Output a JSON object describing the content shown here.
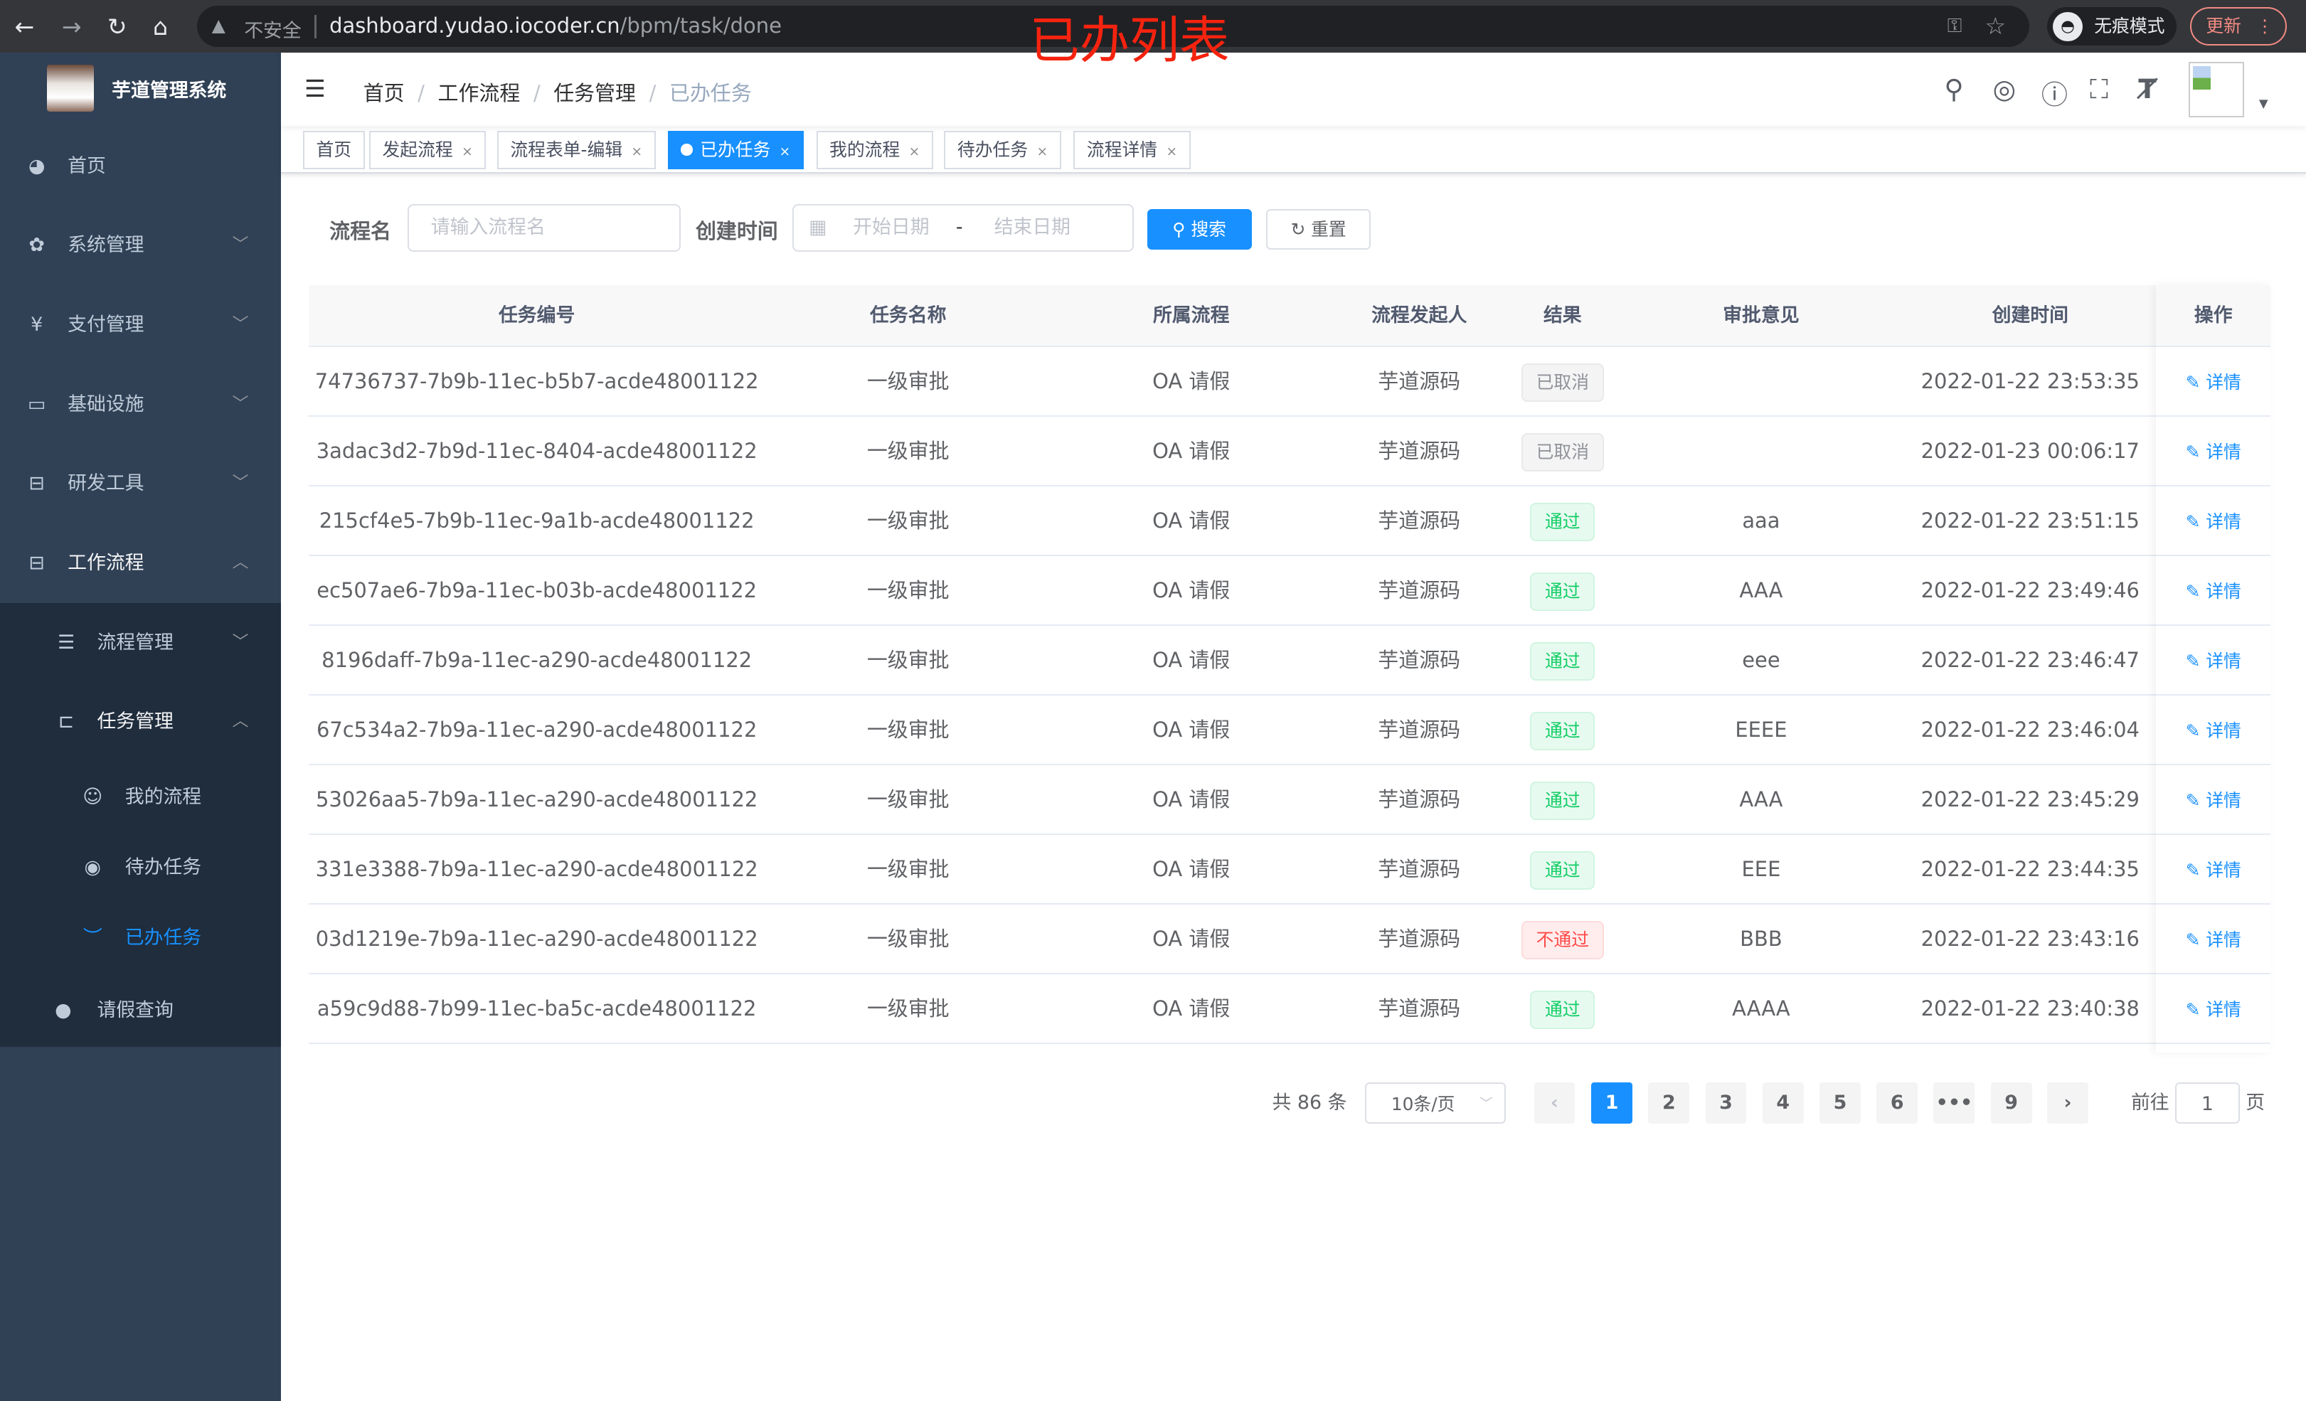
{
  "browser": {
    "url_host": "dashboard.yudao.iocoder.cn",
    "url_path": "/bpm/task/done",
    "security": "不安全",
    "incognito": "无痕模式",
    "update": "更新"
  },
  "annotation": "已办列表",
  "sidebar": {
    "title": "芋道管理系统",
    "items": [
      {
        "label": "首页",
        "icon": "dashboard-icon"
      },
      {
        "label": "系统管理",
        "icon": "gear-icon"
      },
      {
        "label": "支付管理",
        "icon": "yen-icon"
      },
      {
        "label": "基础设施",
        "icon": "monitor-icon"
      },
      {
        "label": "研发工具",
        "icon": "toolbox-icon"
      },
      {
        "label": "工作流程",
        "icon": "toolbox-icon"
      }
    ],
    "sub": [
      {
        "label": "流程管理"
      },
      {
        "label": "任务管理"
      },
      {
        "label": "我的流程"
      },
      {
        "label": "待办任务"
      },
      {
        "label": "已办任务"
      },
      {
        "label": "请假查询"
      }
    ],
    "active_color": "#1890ff"
  },
  "breadcrumb": [
    "首页",
    "工作流程",
    "任务管理",
    "已办任务"
  ],
  "tags": [
    "首页",
    "发起流程",
    "流程表单-编辑",
    "已办任务",
    "我的流程",
    "待办任务",
    "流程详情"
  ],
  "filter": {
    "name_label": "流程名",
    "name_placeholder": "请输入流程名",
    "time_label": "创建时间",
    "start_placeholder": "开始日期",
    "range_sep": "-",
    "end_placeholder": "结束日期",
    "search": "搜索",
    "reset": "重置"
  },
  "table": {
    "headers": [
      "任务编号",
      "任务名称",
      "所属流程",
      "流程发起人",
      "结果",
      "审批意见",
      "创建时间",
      "操作"
    ],
    "action": "详情",
    "rows": [
      {
        "id": "74736737-7b9b-11ec-b5b7-acde48001122",
        "name": "一级审批",
        "process": "OA 请假",
        "starter": "芋道源码",
        "result": "已取消",
        "type": "cancel",
        "comment": "",
        "time": "2022-01-22 23:53:35"
      },
      {
        "id": "3adac3d2-7b9d-11ec-8404-acde48001122",
        "name": "一级审批",
        "process": "OA 请假",
        "starter": "芋道源码",
        "result": "已取消",
        "type": "cancel",
        "comment": "",
        "time": "2022-01-23 00:06:17"
      },
      {
        "id": "215cf4e5-7b9b-11ec-9a1b-acde48001122",
        "name": "一级审批",
        "process": "OA 请假",
        "starter": "芋道源码",
        "result": "通过",
        "type": "pass",
        "comment": "aaa",
        "time": "2022-01-22 23:51:15"
      },
      {
        "id": "ec507ae6-7b9a-11ec-b03b-acde48001122",
        "name": "一级审批",
        "process": "OA 请假",
        "starter": "芋道源码",
        "result": "通过",
        "type": "pass",
        "comment": "AAA",
        "time": "2022-01-22 23:49:46"
      },
      {
        "id": "8196daff-7b9a-11ec-a290-acde48001122",
        "name": "一级审批",
        "process": "OA 请假",
        "starter": "芋道源码",
        "result": "通过",
        "type": "pass",
        "comment": "eee",
        "time": "2022-01-22 23:46:47"
      },
      {
        "id": "67c534a2-7b9a-11ec-a290-acde48001122",
        "name": "一级审批",
        "process": "OA 请假",
        "starter": "芋道源码",
        "result": "通过",
        "type": "pass",
        "comment": "EEEE",
        "time": "2022-01-22 23:46:04"
      },
      {
        "id": "53026aa5-7b9a-11ec-a290-acde48001122",
        "name": "一级审批",
        "process": "OA 请假",
        "starter": "芋道源码",
        "result": "通过",
        "type": "pass",
        "comment": "AAA",
        "time": "2022-01-22 23:45:29"
      },
      {
        "id": "331e3388-7b9a-11ec-a290-acde48001122",
        "name": "一级审批",
        "process": "OA 请假",
        "starter": "芋道源码",
        "result": "通过",
        "type": "pass",
        "comment": "EEE",
        "time": "2022-01-22 23:44:35"
      },
      {
        "id": "03d1219e-7b9a-11ec-a290-acde48001122",
        "name": "一级审批",
        "process": "OA 请假",
        "starter": "芋道源码",
        "result": "不通过",
        "type": "fail",
        "comment": "BBB",
        "time": "2022-01-22 23:43:16"
      },
      {
        "id": "a59c9d88-7b99-11ec-ba5c-acde48001122",
        "name": "一级审批",
        "process": "OA 请假",
        "starter": "芋道源码",
        "result": "通过",
        "type": "pass",
        "comment": "AAAA",
        "time": "2022-01-22 23:40:38"
      }
    ]
  },
  "pagination": {
    "total": "共 86 条",
    "page_size": "10条/页",
    "pages": [
      "1",
      "2",
      "3",
      "4",
      "5",
      "6",
      "•••",
      "9"
    ],
    "current": "1",
    "goto_label": "前往",
    "goto_value": "1",
    "goto_suffix": "页"
  }
}
